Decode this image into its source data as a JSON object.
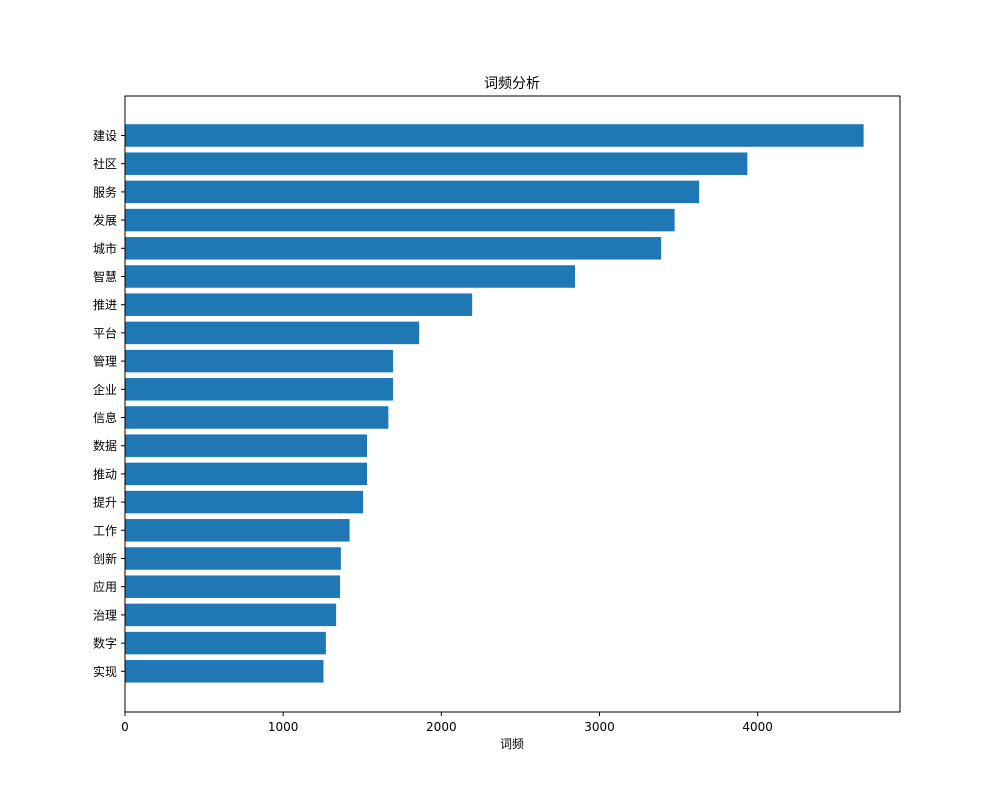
{
  "chart_data": {
    "type": "bar",
    "orientation": "horizontal",
    "title": "词频分析",
    "xlabel": "词频",
    "ylabel": "",
    "xlim": [
      0,
      4900
    ],
    "xticks": [
      0,
      1000,
      2000,
      3000,
      4000
    ],
    "grid": false,
    "legend": "none",
    "bar_color": "#1f77b4",
    "categories": [
      "建设",
      "社区",
      "服务",
      "发展",
      "城市",
      "智慧",
      "推进",
      "平台",
      "管理",
      "企业",
      "信息",
      "数据",
      "推动",
      "提升",
      "工作",
      "创新",
      "应用",
      "治理",
      "数字",
      "实现"
    ],
    "values": [
      4670,
      3935,
      3630,
      3475,
      3390,
      2845,
      2195,
      1860,
      1695,
      1695,
      1665,
      1530,
      1530,
      1505,
      1420,
      1365,
      1360,
      1335,
      1270,
      1255
    ]
  }
}
